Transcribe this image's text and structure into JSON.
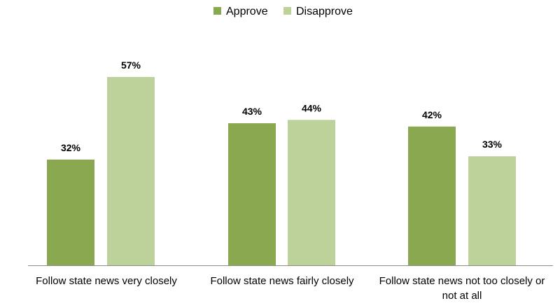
{
  "chart_data": {
    "type": "bar",
    "categories": [
      [
        "Follow state news very closely"
      ],
      [
        "Follow state news fairly closely"
      ],
      [
        "Follow state news not too closely or",
        "not at all"
      ]
    ],
    "series": [
      {
        "name": "Approve",
        "values": [
          32,
          43,
          42
        ],
        "labels": [
          "32%",
          "43%",
          "42%"
        ],
        "color": "#8aa84f"
      },
      {
        "name": "Disapprove",
        "values": [
          57,
          44,
          33
        ],
        "labels": [
          "57%",
          "44%",
          "33%"
        ],
        "color": "#bdd19a"
      }
    ],
    "ylim": [
      0,
      70
    ],
    "legend_position": "top-center",
    "grid": false
  }
}
